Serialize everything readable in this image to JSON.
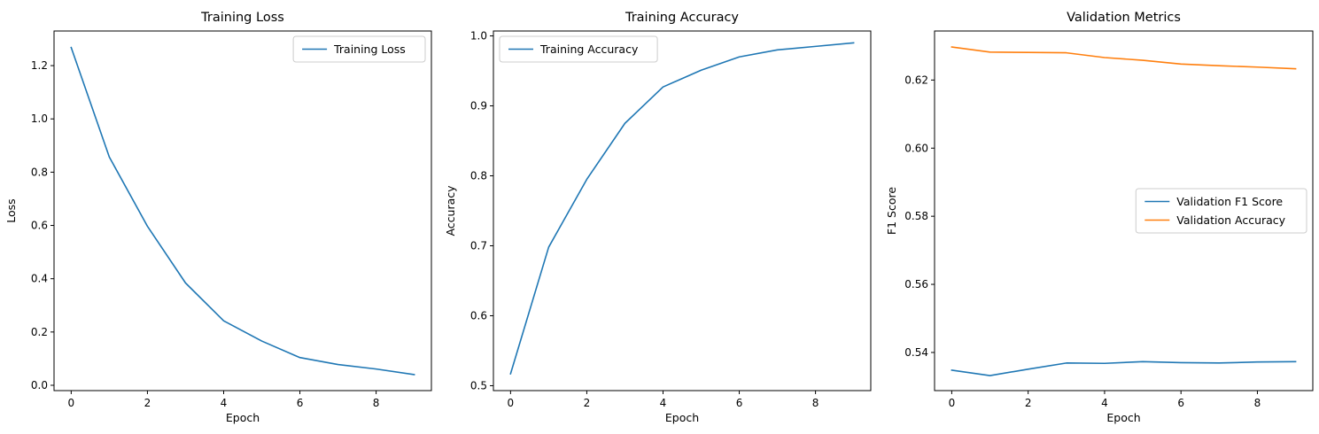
{
  "colors": {
    "blue": "#1f77b4",
    "orange": "#ff7f0e",
    "axis": "#000000",
    "legend_border": "#cccccc",
    "background": "#ffffff"
  },
  "chart_data": [
    {
      "type": "line",
      "title": "Training Loss",
      "xlabel": "Epoch",
      "ylabel": "Loss",
      "xlim": [
        -0.45,
        9.45
      ],
      "ylim": [
        -0.02,
        1.33
      ],
      "xticks": [
        0,
        2,
        4,
        6,
        8
      ],
      "yticks": [
        0.0,
        0.2,
        0.4,
        0.6,
        0.8,
        1.0,
        1.2
      ],
      "ytick_decimals": 1,
      "grid": false,
      "legend_position": "upper right",
      "x": [
        0,
        1,
        2,
        3,
        4,
        5,
        6,
        7,
        8,
        9
      ],
      "series": [
        {
          "name": "Training Loss",
          "color": "#1f77b4",
          "values": [
            1.268,
            0.857,
            0.597,
            0.384,
            0.242,
            0.166,
            0.104,
            0.078,
            0.061,
            0.04
          ]
        }
      ]
    },
    {
      "type": "line",
      "title": "Training Accuracy",
      "xlabel": "Epoch",
      "ylabel": "Accuracy",
      "xlim": [
        -0.45,
        9.45
      ],
      "ylim": [
        0.493,
        1.007
      ],
      "xticks": [
        0,
        2,
        4,
        6,
        8
      ],
      "yticks": [
        0.5,
        0.6,
        0.7,
        0.8,
        0.9,
        1.0
      ],
      "ytick_decimals": 1,
      "grid": false,
      "legend_position": "upper left",
      "x": [
        0,
        1,
        2,
        3,
        4,
        5,
        6,
        7,
        8,
        9
      ],
      "series": [
        {
          "name": "Training Accuracy",
          "color": "#1f77b4",
          "values": [
            0.517,
            0.698,
            0.795,
            0.875,
            0.927,
            0.951,
            0.97,
            0.98,
            0.985,
            0.99
          ]
        }
      ]
    },
    {
      "type": "line",
      "title": "Validation Metrics",
      "xlabel": "Epoch",
      "ylabel": "F1 Score",
      "xlim": [
        -0.45,
        9.45
      ],
      "ylim": [
        0.5288,
        0.6344
      ],
      "xticks": [
        0,
        2,
        4,
        6,
        8
      ],
      "yticks": [
        0.54,
        0.56,
        0.58,
        0.6,
        0.62
      ],
      "ytick_decimals": 2,
      "grid": false,
      "legend_position": "center right",
      "x": [
        0,
        1,
        2,
        3,
        4,
        5,
        6,
        7,
        8,
        9
      ],
      "series": [
        {
          "name": "Validation F1 Score",
          "color": "#1f77b4",
          "values": [
            0.5348,
            0.5332,
            0.5351,
            0.5369,
            0.5368,
            0.5373,
            0.537,
            0.5369,
            0.5372,
            0.5373
          ]
        },
        {
          "name": "Validation Accuracy",
          "color": "#ff7f0e",
          "values": [
            0.6297,
            0.6282,
            0.6281,
            0.628,
            0.6266,
            0.6258,
            0.6247,
            0.6242,
            0.6238,
            0.6233
          ]
        }
      ]
    }
  ]
}
